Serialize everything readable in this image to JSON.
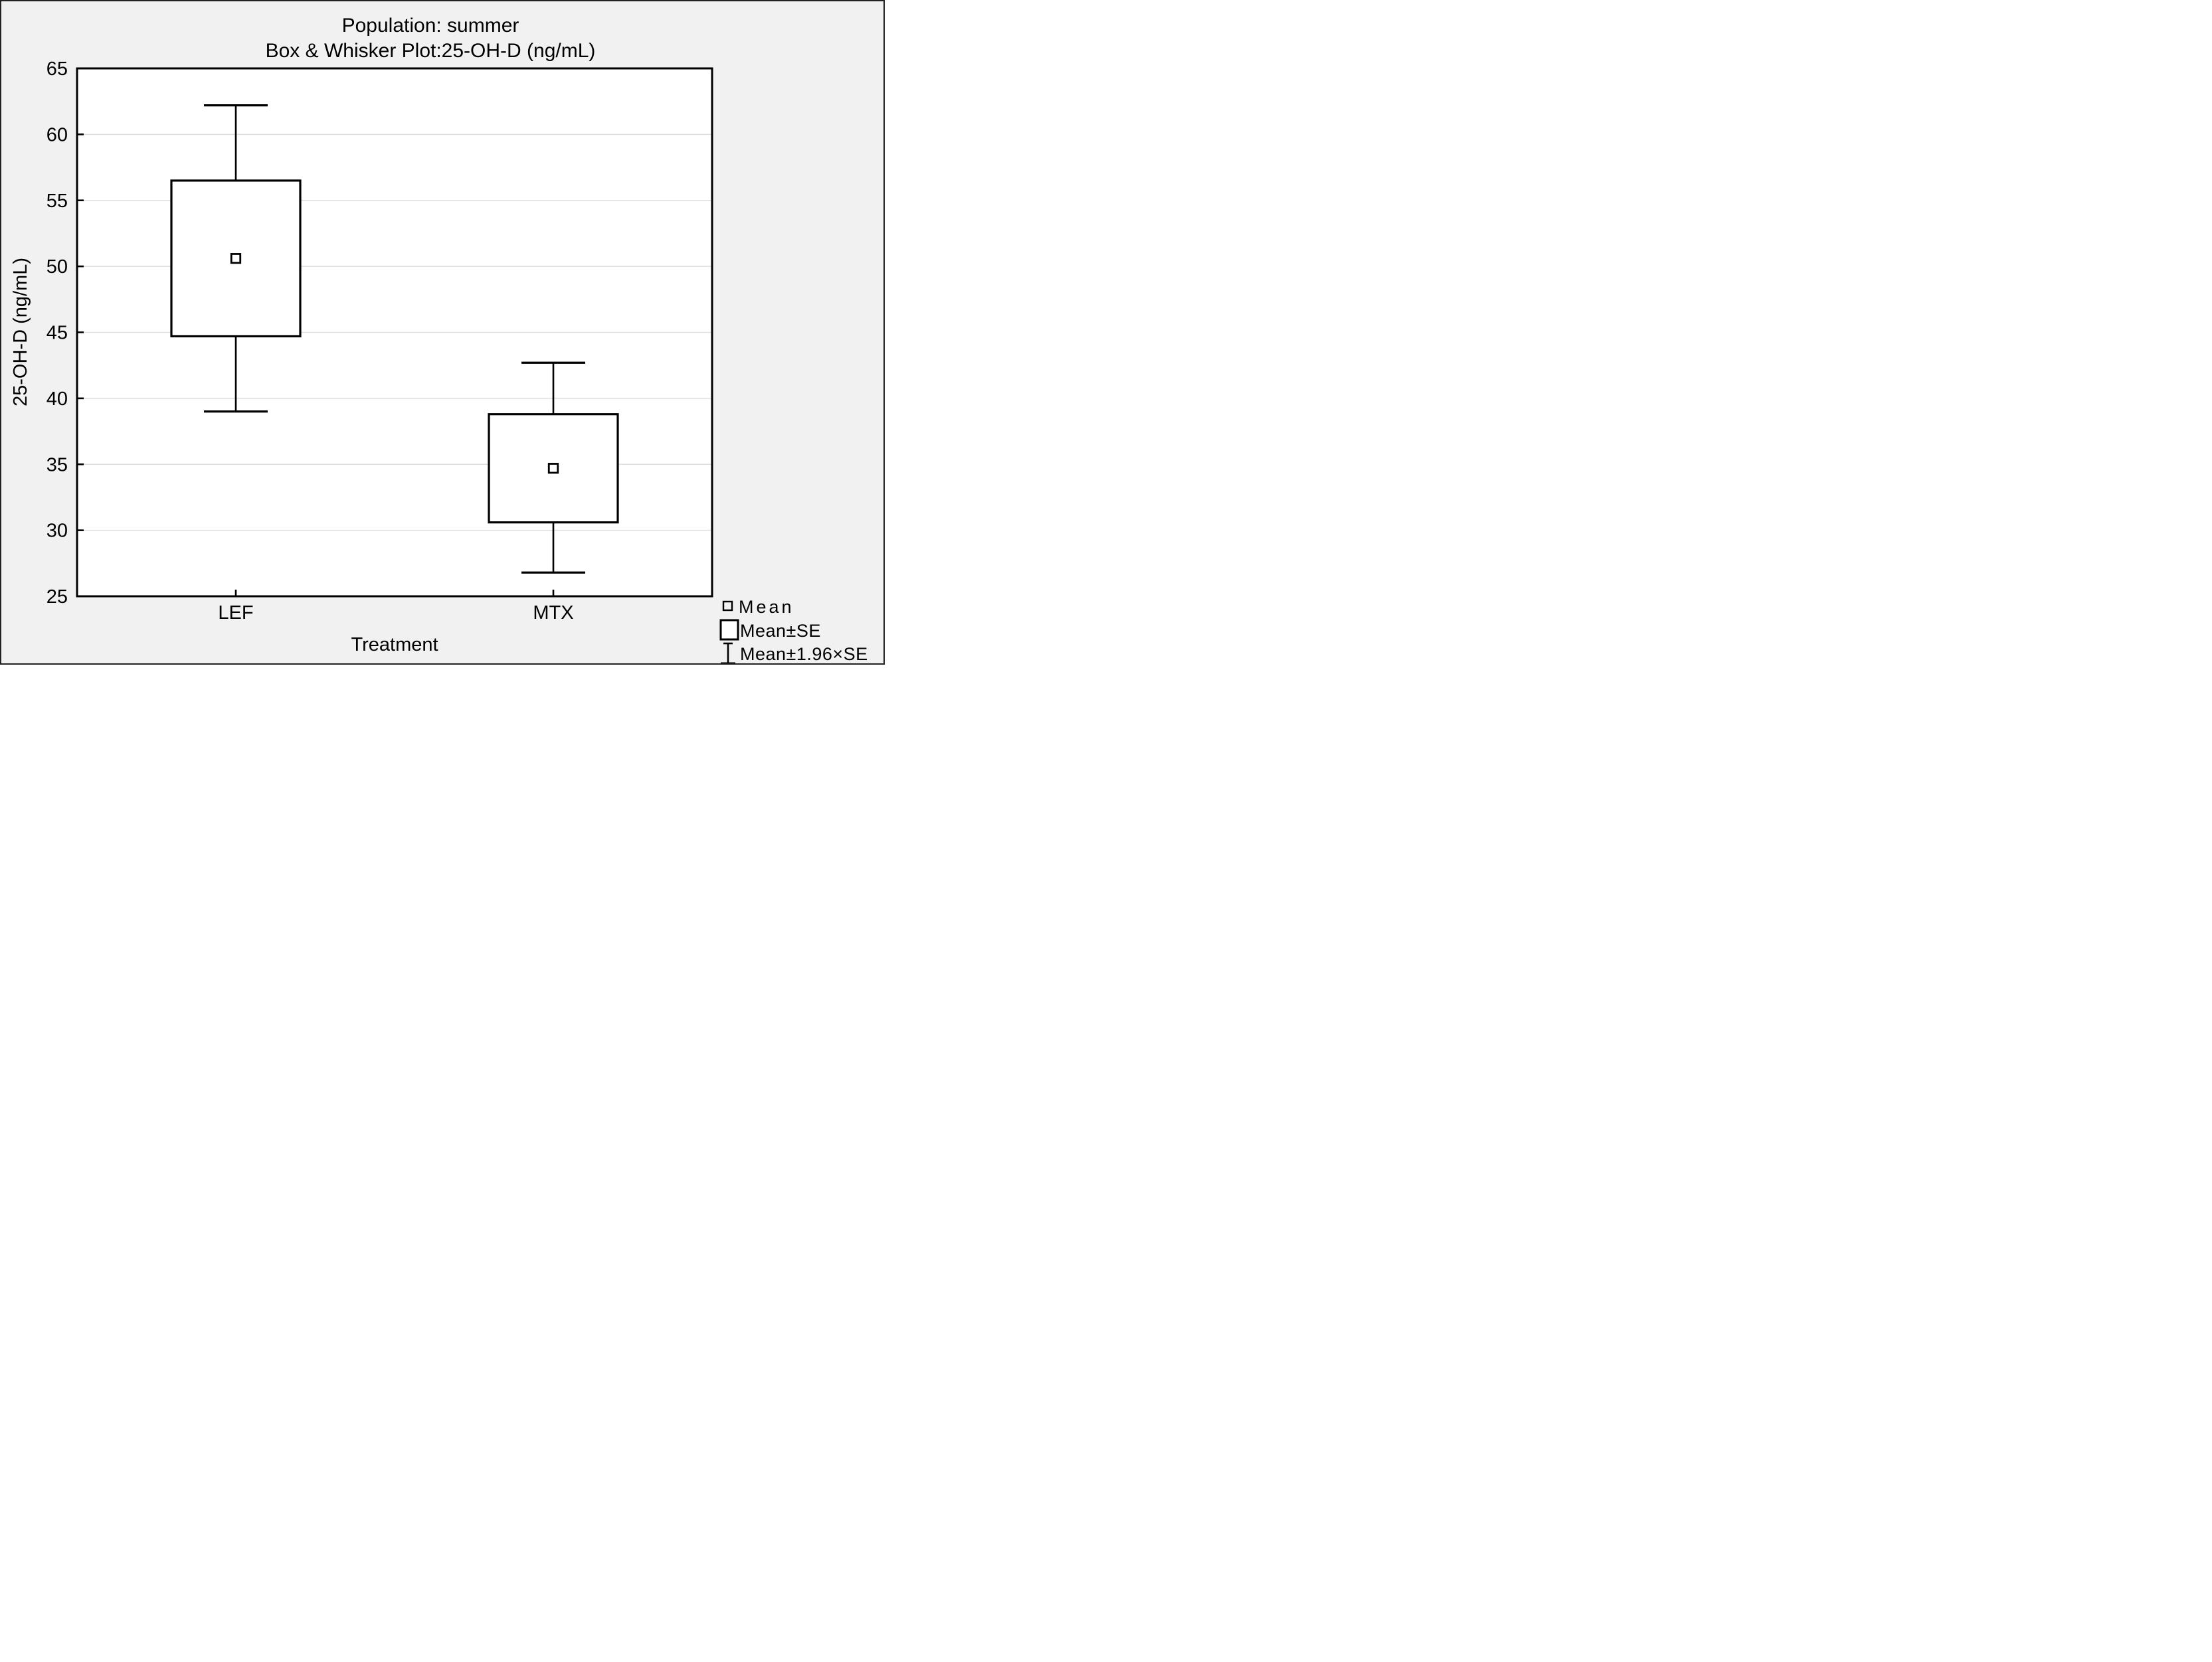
{
  "colors": {
    "canvas_bg": "#f1f1f1",
    "plot_bg": "#ffffff",
    "grid": "#dedede",
    "ink": "#000000",
    "frame_border": "#222222"
  },
  "title": {
    "line1": "Population: summer",
    "line2": "Box & Whisker Plot:25-OH-D (ng/mL)"
  },
  "axes": {
    "y_label": "25-OH-D (ng/mL)",
    "x_label": "Treatment"
  },
  "legend": {
    "items": [
      {
        "symbol": "mean-square",
        "label": "Mean"
      },
      {
        "symbol": "se-box",
        "label": "Mean±SE"
      },
      {
        "symbol": "whisker-bar",
        "label": "Mean±1.96×SE"
      }
    ],
    "position": "bottom-right"
  },
  "chart_data": {
    "type": "box",
    "title": "Population: summer",
    "subtitle": "Box & Whisker Plot:25-OH-D (ng/mL)",
    "xlabel": "Treatment",
    "ylabel": "25-OH-D (ng/mL)",
    "ylim": [
      25,
      65
    ],
    "yticks": [
      25,
      30,
      35,
      40,
      45,
      50,
      55,
      60,
      65
    ],
    "grid": "horizontal",
    "categories": [
      "LEF",
      "MTX"
    ],
    "center_rule": "Mean",
    "box_rule": "Mean±SE",
    "whisker_rule": "Mean±1.96×SE",
    "boxes": [
      {
        "category": "LEF",
        "mean": 50.6,
        "box_low": 44.7,
        "box_high": 56.5,
        "whisker_low": 39.0,
        "whisker_high": 62.2
      },
      {
        "category": "MTX",
        "mean": 34.7,
        "box_low": 30.6,
        "box_high": 38.8,
        "whisker_low": 26.8,
        "whisker_high": 42.7
      }
    ]
  }
}
